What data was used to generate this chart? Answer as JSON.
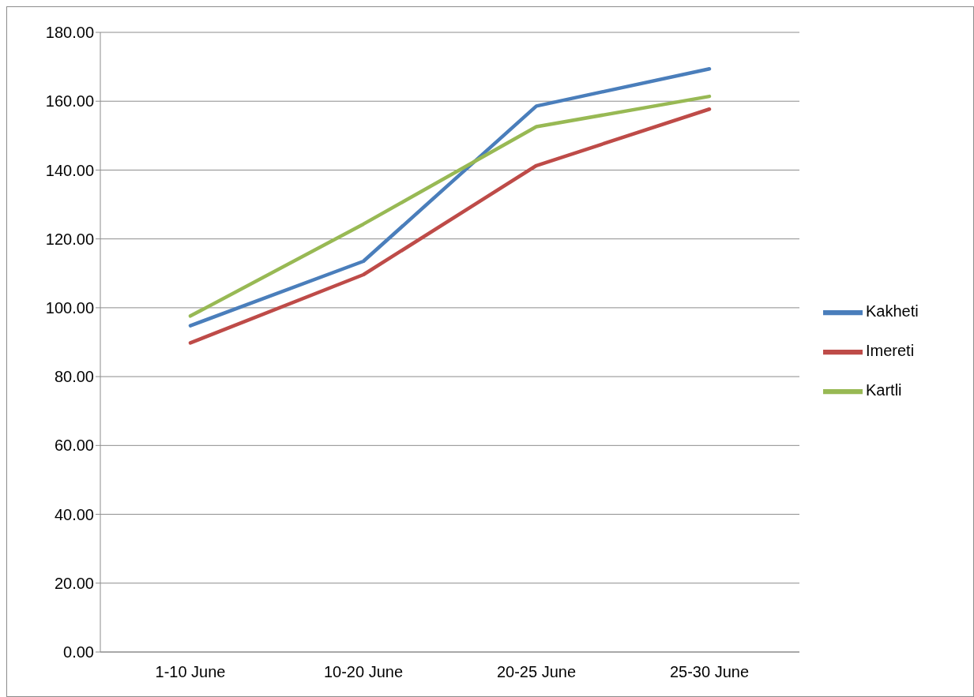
{
  "chart_data": {
    "type": "line",
    "categories": [
      "1-10 June",
      "10-20 June",
      "20-25 June",
      "25-30 June"
    ],
    "series": [
      {
        "name": "Kakheti",
        "color": "#4a7ebb",
        "values": [
          94.8,
          113.5,
          158.6,
          169.4
        ]
      },
      {
        "name": "Imereti",
        "color": "#be4b48",
        "values": [
          89.8,
          109.6,
          141.3,
          157.7
        ]
      },
      {
        "name": "Kartli",
        "color": "#98b954",
        "values": [
          97.6,
          124.3,
          152.6,
          161.4
        ]
      }
    ],
    "ylim": [
      0,
      180
    ],
    "yticks": [
      {
        "value": 0,
        "label": "0.00"
      },
      {
        "value": 20,
        "label": "20.00"
      },
      {
        "value": 40,
        "label": "40.00"
      },
      {
        "value": 60,
        "label": "60.00"
      },
      {
        "value": 80,
        "label": "80.00"
      },
      {
        "value": 100,
        "label": "100.00"
      },
      {
        "value": 120,
        "label": "120.00"
      },
      {
        "value": 140,
        "label": "140.00"
      },
      {
        "value": 160,
        "label": "160.00"
      },
      {
        "value": 180,
        "label": "180.00"
      }
    ],
    "grid": "y",
    "legend": "right",
    "marker": "none",
    "line_style": "solid"
  }
}
